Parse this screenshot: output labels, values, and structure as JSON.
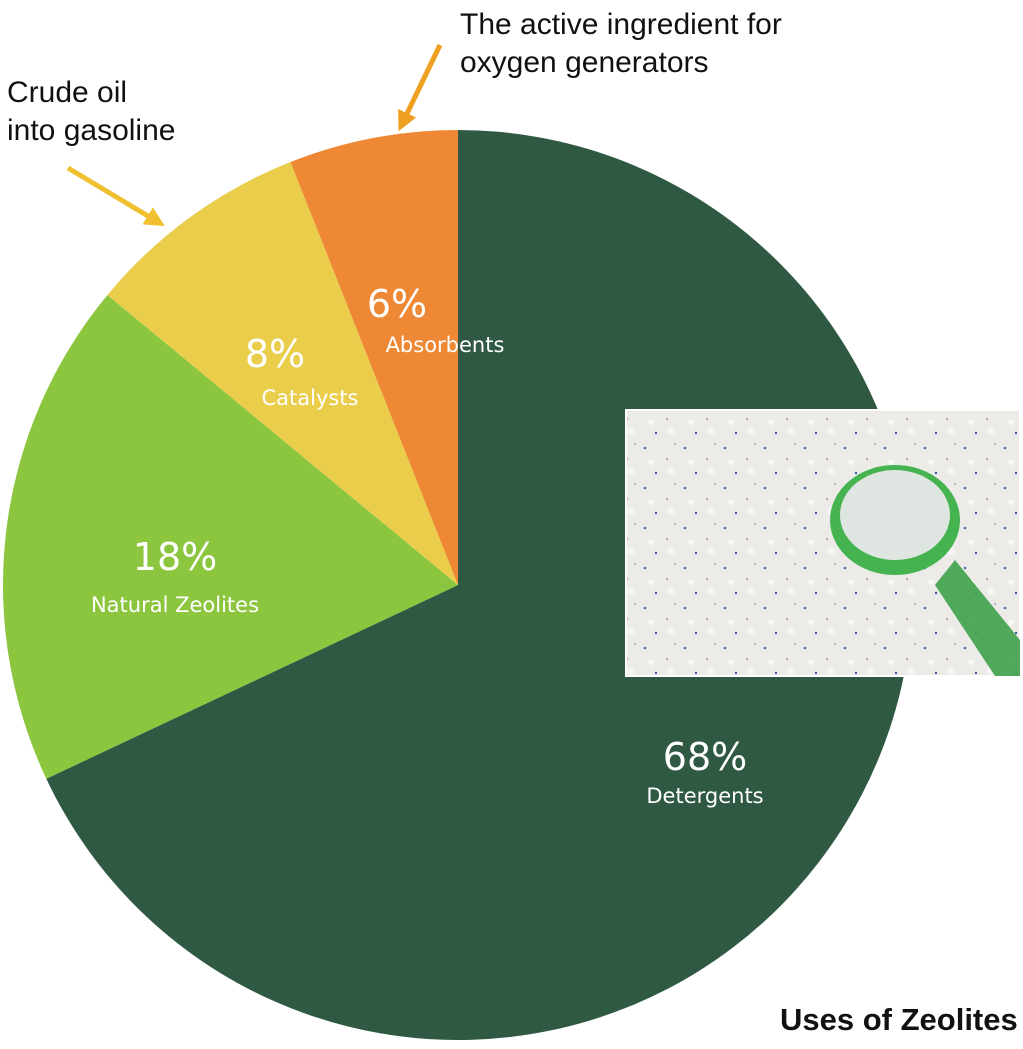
{
  "chart_data": {
    "type": "pie",
    "title": "Uses of Zeolites",
    "categories": [
      "Detergents",
      "Natural Zeolites",
      "Catalysts",
      "Absorbents"
    ],
    "values": [
      68,
      18,
      8,
      6
    ],
    "value_labels": [
      "68%",
      "18%",
      "8%",
      "6%"
    ],
    "colors": [
      "#2f5943",
      "#8cc63f",
      "#e9cd4b",
      "#ee8834"
    ],
    "annotations": [
      {
        "lines": [
          "The active ingredient for",
          "oxygen generators"
        ],
        "color": "#f0a020"
      },
      {
        "lines": [
          "Crude oil",
          "into gasoline"
        ],
        "color": "#f0c030"
      }
    ]
  }
}
